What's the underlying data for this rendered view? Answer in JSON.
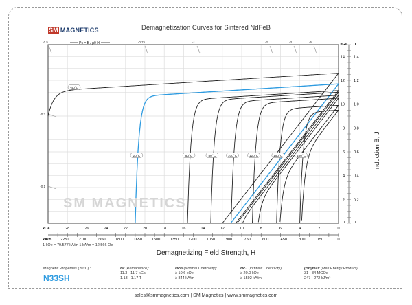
{
  "header": {
    "logo_sm": "SM",
    "logo_text": "MAGNETICS",
    "title": "Demagnetization Curves for Sintered NdFeB"
  },
  "watermark": "SM MAGNETICS",
  "pc_label": "Pc = B / μ0 H",
  "pc_ticks_top": [
    "-0.5",
    "-0.75",
    "-1",
    "-2",
    "-3",
    "-5"
  ],
  "pc_ticks_left": [
    "-0.3",
    "-0.1"
  ],
  "chart_data": {
    "type": "line",
    "title": "Demagnetization Curves for Sintered NdFeB",
    "xlabel": "Demagnetizing Field Strength, H",
    "ylabel": "Induction B, J",
    "xlim": [
      30,
      0
    ],
    "ylim": [
      0,
      15
    ],
    "grid": true,
    "x_unit_primary": "kOe",
    "x_unit_secondary": "kA/m",
    "y_unit_primary": "kGs",
    "y_unit_secondary": "T",
    "x_ticks_koe": [
      "28",
      "26",
      "24",
      "22",
      "20",
      "18",
      "16",
      "14",
      "12",
      "10",
      "8",
      "6",
      "4",
      "2",
      "0"
    ],
    "x_ticks_kam": [
      "2250",
      "2100",
      "1950",
      "1800",
      "1650",
      "1500",
      "1350",
      "1200",
      "1050",
      "900",
      "750",
      "600",
      "450",
      "300",
      "150",
      "0"
    ],
    "y_ticks_kgs": [
      "0",
      "2",
      "4",
      "6",
      "8",
      "10",
      "12",
      "14"
    ],
    "y_ticks_t": [
      "0",
      "0.2",
      "0.4",
      "0.6",
      "0.8",
      "1.0",
      "1.2",
      "1.4"
    ],
    "series": [
      {
        "name": "-40°C",
        "Br_kG": 12.6,
        "Hcj_kOe": 31,
        "highlight": false
      },
      {
        "name": "20°C",
        "Br_kG": 11.7,
        "Hcj_kOe": 21.0,
        "highlight": true
      },
      {
        "name": "60°C",
        "Br_kG": 11.15,
        "Hcj_kOe": 15.6,
        "highlight": false
      },
      {
        "name": "80°C",
        "Br_kG": 11.0,
        "Hcj_kOe": 13.2,
        "highlight": false
      },
      {
        "name": "100°C",
        "Br_kG": 10.75,
        "Hcj_kOe": 11.1,
        "highlight": false
      },
      {
        "name": "120°C",
        "Br_kG": 10.5,
        "Hcj_kOe": 8.9,
        "highlight": false
      },
      {
        "name": "150°C",
        "Br_kG": 9.9,
        "Hcj_kOe": 6.4,
        "highlight": false
      },
      {
        "name": "180°C",
        "Br_kG": 9.5,
        "Hcj_kOe": 4.0,
        "highlight": false
      }
    ]
  },
  "conversion": "1 kOe = 79.577 kA/m   1 kA/m = 12.566 Oe",
  "properties": {
    "heading": "Magnetic Properties (20°C) :",
    "grade": "N33SH",
    "br": {
      "sym": "Br",
      "label": "(Remanence):",
      "v1": "11.3 - 11.7 kGs",
      "v2": "1.13 - 1.17 T"
    },
    "hcb": {
      "sym": "HcB",
      "label": "(Normal Coercivity):",
      "v1": "≥ 10.6 kOe",
      "v2": "≥ 844 kA/m"
    },
    "hcj": {
      "sym": "HcJ",
      "label": "(Intrinsic Coercivity):",
      "v1": "≥ 20.0 kOe",
      "v2": "≥ 1592 kA/m"
    },
    "bh": {
      "sym": "(BH)max",
      "label": "(Max Energy Product):",
      "v1": "31 - 34 MGOe",
      "v2": "247 - 272 kJ/m³"
    }
  },
  "footer": "sales@smmagnetics.com | SM Magnetics | www.smmagnetics.com",
  "colors": {
    "accent": "#2e9be0",
    "curve": "#222222",
    "grid": "#dddddd"
  }
}
